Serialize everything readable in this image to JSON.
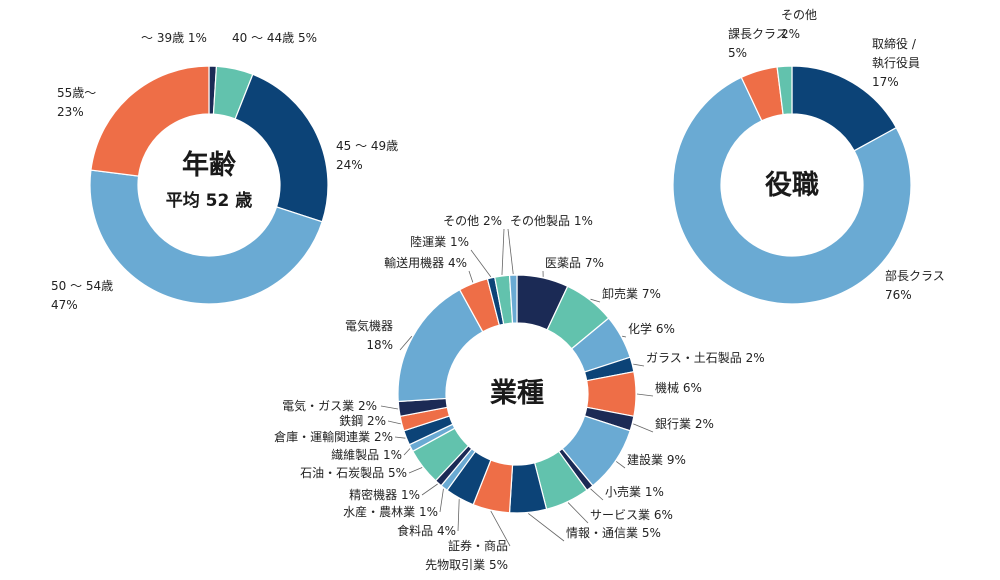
{
  "colors": {
    "dark_navy": "#1b2a55",
    "navy": "#0c4377",
    "teal": "#62c2ad",
    "light_blue": "#6aaad3",
    "orange": "#ee6e47"
  },
  "chart_data": [
    {
      "type": "pie",
      "name": "age",
      "center_title": "年齢",
      "center_subtitle": "平均 52 歳",
      "slices": [
        {
          "label": "～ 39歳",
          "value": 1,
          "value_text": "1%",
          "color": "#1b2a55"
        },
        {
          "label": "40 ～ 44歳",
          "value": 5,
          "value_text": "5%",
          "color": "#62c2ad"
        },
        {
          "label": "45 ～ 49歳",
          "value": 24,
          "value_text": "24%",
          "color": "#0c4377"
        },
        {
          "label": "50 ～ 54歳",
          "value": 47,
          "value_text": "47%",
          "color": "#6aaad3"
        },
        {
          "label": "55歳～",
          "value": 23,
          "value_text": "23%",
          "color": "#ee6e47"
        }
      ]
    },
    {
      "type": "pie",
      "name": "position",
      "center_title": "役職",
      "slices": [
        {
          "label": "取締役 /\n執行役員",
          "value": 17,
          "value_text": "17%",
          "color": "#0c4377"
        },
        {
          "label": "部長クラス",
          "value": 76,
          "value_text": "76%",
          "color": "#6aaad3"
        },
        {
          "label": "課長クラス",
          "value": 5,
          "value_text": "5%",
          "color": "#ee6e47"
        },
        {
          "label": "その他",
          "value": 2,
          "value_text": "2%",
          "color": "#62c2ad"
        }
      ]
    },
    {
      "type": "pie",
      "name": "industry",
      "center_title": "業種",
      "slices": [
        {
          "label": "医薬品",
          "value": 7,
          "value_text": "7%",
          "color": "#1b2a55"
        },
        {
          "label": "卸売業",
          "value": 7,
          "value_text": "7%",
          "color": "#62c2ad"
        },
        {
          "label": "化学",
          "value": 6,
          "value_text": "6%",
          "color": "#6aaad3"
        },
        {
          "label": "ガラス・土石製品",
          "value": 2,
          "value_text": "2%",
          "color": "#0c4377"
        },
        {
          "label": "機械",
          "value": 6,
          "value_text": "6%",
          "color": "#ee6e47"
        },
        {
          "label": "銀行業",
          "value": 2,
          "value_text": "2%",
          "color": "#1b2a55"
        },
        {
          "label": "建設業",
          "value": 9,
          "value_text": "9%",
          "color": "#6aaad3"
        },
        {
          "label": "小売業",
          "value": 1,
          "value_text": "1%",
          "color": "#1b2a55"
        },
        {
          "label": "サービス業",
          "value": 6,
          "value_text": "6%",
          "color": "#62c2ad"
        },
        {
          "label": "情報・通信業",
          "value": 5,
          "value_text": "5%",
          "color": "#0c4377"
        },
        {
          "label": "証券・商品\n先物取引業",
          "value": 5,
          "value_text": "5%",
          "color": "#ee6e47"
        },
        {
          "label": "食料品",
          "value": 4,
          "value_text": "4%",
          "color": "#0c4377"
        },
        {
          "label": "水産・農林業",
          "value": 1,
          "value_text": "1%",
          "color": "#6aaad3"
        },
        {
          "label": "精密機器",
          "value": 1,
          "value_text": "1%",
          "color": "#1b2a55"
        },
        {
          "label": "石油・石炭製品",
          "value": 5,
          "value_text": "5%",
          "color": "#62c2ad"
        },
        {
          "label": "繊維製品",
          "value": 1,
          "value_text": "1%",
          "color": "#6aaad3"
        },
        {
          "label": "倉庫・運輸関連業",
          "value": 2,
          "value_text": "2%",
          "color": "#0c4377"
        },
        {
          "label": "鉄鋼",
          "value": 2,
          "value_text": "2%",
          "color": "#ee6e47"
        },
        {
          "label": "電気・ガス業",
          "value": 2,
          "value_text": "2%",
          "color": "#1b2a55"
        },
        {
          "label": "電気機器",
          "value": 18,
          "value_text": "18%",
          "color": "#6aaad3"
        },
        {
          "label": "輸送用機器",
          "value": 4,
          "value_text": "4%",
          "color": "#ee6e47"
        },
        {
          "label": "陸運業",
          "value": 1,
          "value_text": "1%",
          "color": "#0c4377"
        },
        {
          "label": "その他",
          "value": 2,
          "value_text": "2%",
          "color": "#62c2ad"
        },
        {
          "label": "その他製品",
          "value": 1,
          "value_text": "1%",
          "color": "#6aaad3"
        }
      ]
    }
  ]
}
